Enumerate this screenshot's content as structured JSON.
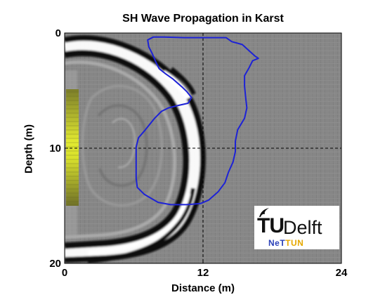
{
  "chart_data": {
    "type": "image",
    "title": "SH Wave Propagation in Karst",
    "xlabel": "Distance (m)",
    "ylabel": "Depth (m)",
    "xlim": [
      0,
      24
    ],
    "ylim": [
      20,
      0
    ],
    "x_ticks": [
      0,
      12,
      24
    ],
    "y_ticks": [
      0,
      10,
      20
    ],
    "x_tick_labels": [
      "0",
      "12",
      "24"
    ],
    "y_tick_labels": [
      "0",
      "10",
      "20"
    ],
    "crosshair": {
      "x": 12,
      "y": 10
    },
    "karst_boundary": {
      "color": "#1d22d6",
      "points": [
        [
          7.2,
          0.6
        ],
        [
          7.7,
          0.35
        ],
        [
          8.6,
          0.35
        ],
        [
          10.4,
          0.4
        ],
        [
          12.7,
          0.4
        ],
        [
          14.0,
          0.4
        ],
        [
          14.5,
          0.75
        ],
        [
          15.4,
          1.0
        ],
        [
          16.5,
          2.0
        ],
        [
          16.8,
          2.2
        ],
        [
          16.3,
          2.4
        ],
        [
          16.0,
          3.0
        ],
        [
          15.6,
          3.7
        ],
        [
          15.6,
          4.6
        ],
        [
          15.7,
          5.6
        ],
        [
          15.8,
          6.5
        ],
        [
          15.6,
          7.4
        ],
        [
          15.0,
          8.4
        ],
        [
          14.8,
          9.4
        ],
        [
          14.8,
          10.3
        ],
        [
          14.6,
          11.2
        ],
        [
          14.2,
          12.1
        ],
        [
          13.9,
          13.0
        ],
        [
          13.3,
          13.8
        ],
        [
          12.5,
          14.5
        ],
        [
          11.8,
          14.8
        ],
        [
          10.6,
          14.9
        ],
        [
          9.2,
          14.9
        ],
        [
          8.1,
          14.7
        ],
        [
          6.9,
          14.0
        ],
        [
          6.3,
          13.4
        ],
        [
          6.2,
          12.6
        ],
        [
          6.2,
          11.4
        ],
        [
          6.2,
          9.9
        ],
        [
          6.4,
          9.1
        ],
        [
          7.0,
          8.4
        ],
        [
          7.8,
          7.4
        ],
        [
          8.4,
          6.8
        ],
        [
          9.0,
          6.5
        ],
        [
          9.8,
          6.3
        ],
        [
          10.7,
          6.1
        ],
        [
          11.0,
          5.6
        ],
        [
          10.6,
          5.1
        ],
        [
          10.2,
          4.7
        ],
        [
          9.4,
          4.0
        ],
        [
          8.7,
          3.5
        ],
        [
          8.2,
          3.1
        ],
        [
          7.9,
          2.5
        ],
        [
          7.6,
          1.8
        ],
        [
          7.3,
          1.2
        ],
        [
          7.2,
          0.6
        ]
      ]
    },
    "colormap": "gray",
    "background_value": "#858585",
    "source_color": "#d2dc2a"
  },
  "logo": {
    "tu": "TU",
    "delft": "Delft",
    "nettun_part1": "NeT",
    "nettun_part2": "TUN"
  }
}
